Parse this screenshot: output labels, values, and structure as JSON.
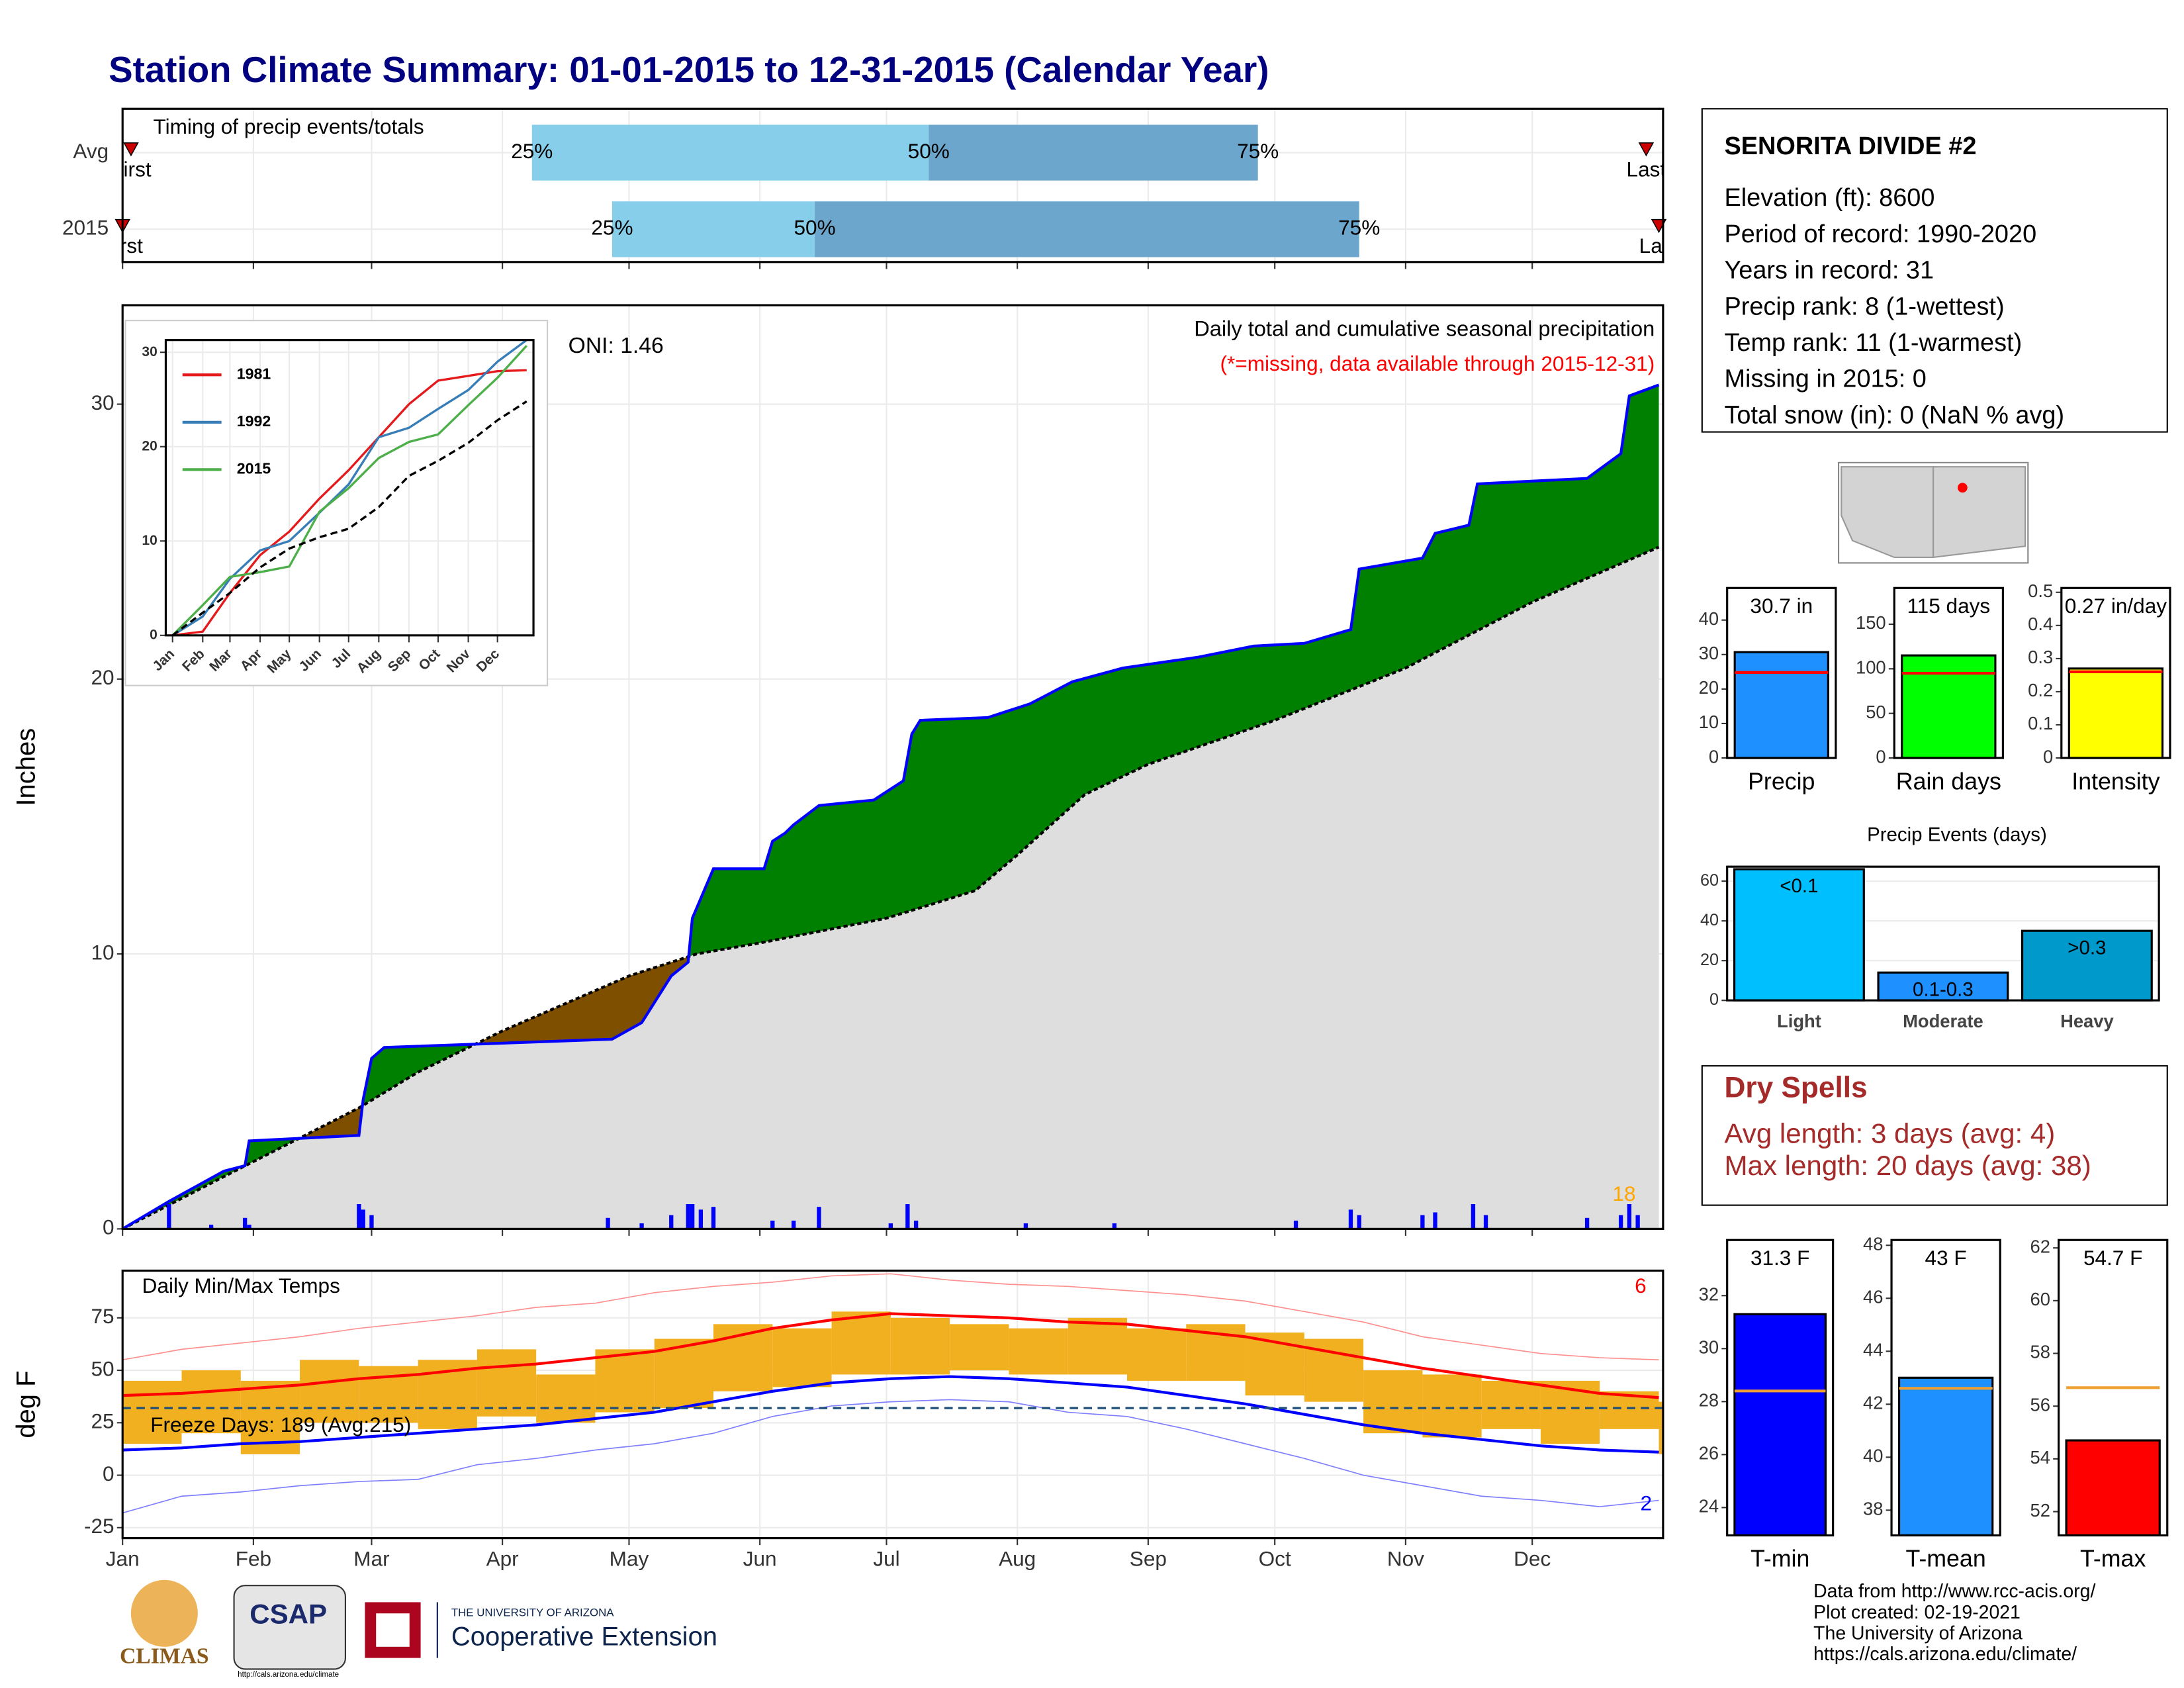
{
  "title": "Station Climate Summary: 01-01-2015 to 12-31-2015 (Calendar Year)",
  "chart_data": [
    {
      "type": "timeline",
      "label": "Timing of precip events/totals",
      "xlim": [
        1,
        366
      ],
      "xticks": [
        1,
        32,
        60,
        91,
        121,
        152,
        182,
        213,
        244,
        274,
        305,
        335
      ],
      "grid": true,
      "colors": [
        "#87ceeb",
        "#6ca6cd"
      ],
      "marker_color": "#cc0000",
      "quantile_labels": [
        "25%",
        "50%",
        "75%"
      ],
      "first_label": "First",
      "last_label": "Last",
      "rows": [
        {
          "label": "Avg",
          "first": 3,
          "q25": 98,
          "q50": 192,
          "q75": 270,
          "last": 362
        },
        {
          "label": "2015",
          "first": 1,
          "q25": 117,
          "q50": 165,
          "q75": 294,
          "last": 365
        }
      ]
    },
    {
      "type": "area",
      "title": "Daily total and cumulative seasonal precipitation",
      "subtitle": "(*=missing, data available through 2015-12-31)",
      "subtitle_color": "#ff0000",
      "annotation": "ONI: 1.46",
      "count_label": "18",
      "count_color": "#ffa500",
      "y_label": "Inches",
      "xlim": [
        1,
        366
      ],
      "xticks": [
        1,
        32,
        60,
        91,
        121,
        152,
        182,
        213,
        244,
        274,
        305,
        335
      ],
      "ylim": [
        0,
        33.6
      ],
      "yticks": [
        0,
        10,
        20,
        30
      ],
      "grid": true,
      "above_color": "#008000",
      "below_color": "#7f4f00",
      "base_color": "#dedede",
      "series": [
        {
          "color": "#0000ff",
          "x": [
            1,
            12,
            25,
            30,
            31,
            57,
            58,
            60,
            63,
            117,
            124,
            131,
            135,
            136,
            141,
            153,
            155,
            158,
            160,
            166,
            179,
            186,
            188,
            190,
            206,
            216,
            226,
            238,
            256,
            269,
            281,
            292,
            294,
            309,
            312,
            320,
            322,
            348,
            356,
            358,
            365
          ],
          "values": [
            0,
            1.0,
            2.1,
            2.3,
            3.2,
            3.4,
            4.7,
            6.2,
            6.6,
            6.9,
            7.5,
            9.2,
            9.7,
            11.3,
            13.1,
            13.1,
            14.1,
            14.4,
            14.7,
            15.4,
            15.6,
            16.3,
            18.0,
            18.5,
            18.6,
            19.1,
            19.9,
            20.4,
            20.8,
            21.2,
            21.3,
            21.8,
            24.0,
            24.4,
            25.3,
            25.6,
            27.1,
            27.3,
            28.2,
            30.3,
            30.7
          ]
        },
        {
          "color": "#000000",
          "dashed": true,
          "x": [
            1,
            25,
            57,
            71,
            91,
            121,
            137,
            152,
            182,
            203,
            213,
            229,
            244,
            274,
            305,
            335,
            365
          ],
          "values": [
            0,
            1.9,
            4.4,
            5.7,
            7.2,
            9.2,
            10.0,
            10.4,
            11.3,
            12.3,
            13.6,
            15.8,
            16.9,
            18.5,
            20.4,
            22.8,
            24.8
          ]
        }
      ],
      "bars": {
        "color": "#0000ff",
        "x": [
          12,
          22,
          30,
          31,
          57,
          58,
          60,
          116,
          124,
          131,
          135,
          136,
          138,
          141,
          155,
          160,
          166,
          183,
          187,
          189,
          215,
          236,
          279,
          292,
          294,
          309,
          312,
          321,
          324,
          348,
          356,
          358,
          360
        ],
        "values": [
          0.9,
          0.15,
          0.4,
          0.15,
          0.9,
          0.7,
          0.5,
          0.4,
          0.2,
          0.5,
          0.9,
          0.9,
          0.7,
          0.8,
          0.3,
          0.3,
          0.8,
          0.2,
          0.9,
          0.3,
          0.2,
          0.2,
          0.3,
          0.7,
          0.5,
          0.5,
          0.6,
          0.9,
          0.5,
          0.4,
          0.5,
          0.9,
          0.5
        ]
      }
    },
    {
      "type": "line",
      "xlim": [
        -6,
        372
      ],
      "ylim": [
        0,
        31.3
      ],
      "yticks": [
        0,
        10,
        20,
        30
      ],
      "grid": true,
      "xticks": [
        {
          "value": 1,
          "label": "Jan"
        },
        {
          "value": 32,
          "label": "Feb"
        },
        {
          "value": 60,
          "label": "Mar"
        },
        {
          "value": 91,
          "label": "Apr"
        },
        {
          "value": 121,
          "label": "May"
        },
        {
          "value": 152,
          "label": "Jun"
        },
        {
          "value": 182,
          "label": "Jul"
        },
        {
          "value": 213,
          "label": "Aug"
        },
        {
          "value": 244,
          "label": "Sep"
        },
        {
          "value": 274,
          "label": "Oct"
        },
        {
          "value": 305,
          "label": "Nov"
        },
        {
          "value": 335,
          "label": "Dec"
        }
      ],
      "x": [
        1,
        32,
        60,
        91,
        121,
        152,
        182,
        213,
        244,
        274,
        305,
        335,
        365
      ],
      "series": [
        {
          "name": "1981",
          "color": "#e41a1c",
          "values": [
            0,
            0.4,
            4.5,
            8.5,
            11,
            14.5,
            17.5,
            21,
            24.5,
            27,
            27.5,
            28,
            28.1
          ]
        },
        {
          "name": "1992",
          "color": "#377eb8",
          "values": [
            0,
            2,
            6,
            9,
            10,
            13,
            16,
            21,
            22,
            24,
            26,
            29,
            31.3
          ]
        },
        {
          "name": "2015",
          "color": "#4daf4a",
          "values": [
            0,
            3.2,
            6.2,
            6.7,
            7.3,
            13.1,
            15.6,
            18.8,
            20.5,
            21.3,
            24.4,
            27.3,
            30.7
          ]
        },
        {
          "color": "#000000",
          "dashed": true,
          "values": [
            0,
            2.4,
            4.5,
            7.2,
            9.2,
            10.4,
            11.3,
            13.6,
            16.9,
            18.5,
            20.4,
            22.8,
            24.8
          ]
        }
      ]
    },
    {
      "type": "range",
      "label": "Daily Min/Max Temps",
      "y_label": "deg F",
      "freeze_text": "Freeze Days: 189 (Avg:215)",
      "freeze_line": 32,
      "freeze_color": "#1f4e79",
      "max_records": "6",
      "min_records": "2",
      "xlim": [
        1,
        366
      ],
      "ylim": [
        -30,
        97.5
      ],
      "yticks": [
        -25,
        0,
        25,
        50,
        75
      ],
      "grid": true,
      "xticks": [
        {
          "value": 1,
          "label": "Jan"
        },
        {
          "value": 32,
          "label": "Feb"
        },
        {
          "value": 60,
          "label": "Mar"
        },
        {
          "value": 91,
          "label": "Apr"
        },
        {
          "value": 121,
          "label": "May"
        },
        {
          "value": 152,
          "label": "Jun"
        },
        {
          "value": 182,
          "label": "Jul"
        },
        {
          "value": 213,
          "label": "Aug"
        },
        {
          "value": 244,
          "label": "Sep"
        },
        {
          "value": 274,
          "label": "Oct"
        },
        {
          "value": 305,
          "label": "Nov"
        },
        {
          "value": 335,
          "label": "Dec"
        }
      ],
      "x": [
        1,
        15,
        29,
        43,
        57,
        71,
        85,
        99,
        113,
        127,
        141,
        155,
        169,
        183,
        197,
        211,
        225,
        239,
        253,
        267,
        281,
        295,
        309,
        323,
        337,
        351,
        365
      ],
      "range": {
        "color": "#f0b020",
        "low": [
          15,
          20,
          10,
          25,
          25,
          22,
          28,
          25,
          30,
          32,
          40,
          42,
          48,
          48,
          50,
          48,
          48,
          45,
          45,
          38,
          35,
          20,
          18,
          22,
          15,
          22,
          10
        ],
        "high": [
          45,
          50,
          45,
          55,
          52,
          55,
          60,
          48,
          60,
          65,
          72,
          70,
          78,
          75,
          72,
          70,
          75,
          70,
          72,
          68,
          65,
          50,
          48,
          45,
          45,
          40,
          35
        ]
      },
      "series": [
        {
          "color": "#ff9090",
          "width": 0.8,
          "values": [
            55,
            60,
            63,
            66,
            70,
            73,
            76,
            80,
            82,
            87,
            90,
            92,
            95,
            96,
            93,
            91,
            90,
            88,
            86,
            83,
            78,
            73,
            66,
            62,
            58,
            56,
            55
          ]
        },
        {
          "color": "#8080ff",
          "width": 0.8,
          "values": [
            -18,
            -10,
            -8,
            -5,
            -3,
            -2,
            5,
            8,
            12,
            15,
            20,
            28,
            33,
            35,
            36,
            35,
            30,
            28,
            22,
            15,
            8,
            0,
            -5,
            -10,
            -12,
            -15,
            -12
          ]
        },
        {
          "color": "#ff0000",
          "width": 2,
          "values": [
            38,
            39,
            41,
            43,
            46,
            48,
            51,
            53,
            56,
            59,
            64,
            70,
            74,
            77,
            76,
            75,
            73,
            72,
            69,
            66,
            61,
            56,
            51,
            47,
            43,
            39,
            37
          ]
        },
        {
          "color": "#0000ff",
          "width": 2,
          "values": [
            12,
            13,
            15,
            16,
            18,
            20,
            22,
            24,
            27,
            30,
            35,
            40,
            44,
            46,
            47,
            46,
            44,
            42,
            38,
            34,
            29,
            24,
            20,
            17,
            14,
            12,
            11
          ]
        }
      ]
    },
    {
      "type": "bar",
      "categories": [
        "Precip"
      ],
      "values": [
        30.7
      ],
      "value_labels": [
        "30.7 in"
      ],
      "color": "#1e90ff",
      "average": 24.8,
      "average_color": "#ff0000",
      "ylim": [
        0,
        49.3
      ],
      "yticks": [
        0,
        10,
        20,
        30,
        40
      ]
    },
    {
      "type": "bar",
      "categories": [
        "Rain days"
      ],
      "values": [
        115
      ],
      "value_labels": [
        "115 days"
      ],
      "color": "#00ff00",
      "average": 95,
      "average_color": "#ff0000",
      "ylim": [
        0,
        190.6
      ],
      "yticks": [
        0,
        50,
        100,
        150
      ]
    },
    {
      "type": "bar",
      "categories": [
        "Intensity"
      ],
      "values": [
        0.27
      ],
      "value_labels": [
        "0.27 in/day"
      ],
      "color": "#ffff00",
      "average": 0.26,
      "average_color": "#ff0000",
      "ylim": [
        0,
        0.513
      ],
      "yticks": [
        0.0,
        {
          "value": 0.1,
          "label": "0.1"
        },
        {
          "value": 0.2,
          "label": "0.2"
        },
        {
          "value": 0.3,
          "label": "0.3"
        },
        {
          "value": 0.4,
          "label": "0.4"
        },
        {
          "value": 0.5,
          "label": "0.5"
        }
      ]
    },
    {
      "type": "events",
      "title": "Precip Events (days)",
      "categories": [
        "Light",
        "Moderate",
        "Heavy"
      ],
      "values": [
        66,
        14,
        35
      ],
      "bar_labels": [
        "<0.1",
        "0.1-0.3",
        ">0.3"
      ],
      "colors": [
        "#00bfff",
        "#1e90ff",
        "#0099cc"
      ],
      "ylim": [
        0,
        67.3
      ],
      "yticks": [
        0,
        20,
        40,
        60
      ],
      "grid": true
    },
    {
      "type": "bar",
      "categories": [
        "T-min"
      ],
      "values": [
        31.3
      ],
      "value_labels": [
        "31.3 F"
      ],
      "color": "#0000ff",
      "average": 28.4,
      "average_color": "#f0a030",
      "ylim": [
        22.95,
        34.1
      ],
      "yticks": [
        24,
        26,
        28,
        30,
        32
      ]
    },
    {
      "type": "bar",
      "categories": [
        "T-mean"
      ],
      "values": [
        43
      ],
      "value_labels": [
        "43 F"
      ],
      "color": "#1e90ff",
      "average": 42.6,
      "average_color": "#f0a030",
      "ylim": [
        37.05,
        48.2
      ],
      "yticks": [
        38,
        40,
        42,
        44,
        46,
        48
      ]
    },
    {
      "type": "bar",
      "categories": [
        "T-max"
      ],
      "values": [
        54.7
      ],
      "value_labels": [
        "54.7 F"
      ],
      "color": "#ff0000",
      "average": 56.7,
      "average_color": "#f0a030",
      "ylim": [
        51.1,
        62.3
      ],
      "yticks": [
        52,
        54,
        56,
        58,
        60,
        62
      ]
    }
  ],
  "station": {
    "name": "SENORITA DIVIDE #2",
    "lines": [
      "Elevation (ft): 8600",
      "Period of record: 1990-2020",
      "Years in record: 31",
      "Precip rank: 8 (1-wettest)",
      "Temp rank: 11 (1-warmest)",
      "Missing in 2015: 0",
      "Total snow (in): 0 (NaN % avg)"
    ]
  },
  "dry_spells": {
    "title": "Dry Spells",
    "lines": [
      "Avg length: 3 days (avg: 4)",
      "Max length: 20 days (avg: 38)"
    ]
  },
  "footer": {
    "credits": [
      "Data from http://www.rcc-acis.org/",
      "Plot created: 02-19-2021",
      "The University of Arizona",
      "https://cals.arizona.edu/climate/"
    ],
    "logos": {
      "climas": "CLIMAS",
      "csap": "CSAP",
      "csap_url": "http://cals.arizona.edu/climate",
      "ua": "THE UNIVERSITY OF ARIZONA",
      "extension": "Cooperative Extension"
    }
  }
}
